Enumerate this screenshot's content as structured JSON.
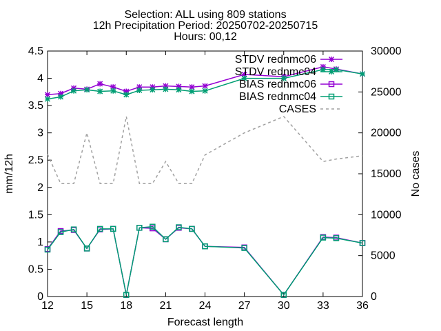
{
  "chart_data": {
    "type": "line",
    "title_lines": [
      "Selection: ALL using   809 stations",
      "12h Precipitation   Period: 20250702-20250715",
      "Hours: 00,12"
    ],
    "xlabel": "Forecast length",
    "ylabel": "mm/12h",
    "y2label": "No cases",
    "x": [
      12,
      13,
      14,
      15,
      16,
      17,
      18,
      19,
      20,
      21,
      22,
      23,
      24,
      27,
      30,
      33,
      34,
      36
    ],
    "xlim": [
      12,
      36
    ],
    "xticks": [
      12,
      15,
      18,
      21,
      24,
      27,
      30,
      33,
      36
    ],
    "ylim": [
      0,
      4.5
    ],
    "yticks": [
      0,
      0.5,
      1,
      1.5,
      2,
      2.5,
      3,
      3.5,
      4,
      4.5
    ],
    "y2lim": [
      0,
      30000
    ],
    "y2ticks": [
      0,
      5000,
      10000,
      15000,
      20000,
      25000,
      30000
    ],
    "legend_position": "top-right",
    "series": [
      {
        "name": "STDV rednmc06",
        "axis": "y1",
        "color": "#9400d3",
        "marker": "star",
        "dash": false,
        "values": [
          3.7,
          3.72,
          3.82,
          3.8,
          3.9,
          3.84,
          3.76,
          3.84,
          3.84,
          3.86,
          3.85,
          3.84,
          3.86,
          4.07,
          4.03,
          4.21,
          4.17,
          4.08
        ]
      },
      {
        "name": "STDV rednmc04",
        "axis": "y1",
        "color": "#009e73",
        "marker": "star",
        "dash": false,
        "values": [
          3.62,
          3.66,
          3.77,
          3.79,
          3.76,
          3.77,
          3.7,
          3.78,
          3.79,
          3.8,
          3.79,
          3.76,
          3.77,
          4.0,
          4.0,
          4.16,
          4.16,
          4.08
        ]
      },
      {
        "name": "BIAS rednmc06",
        "axis": "y1",
        "color": "#9400d3",
        "marker": "square",
        "dash": false,
        "values": [
          0.87,
          1.2,
          1.22,
          0.88,
          1.23,
          1.24,
          0.03,
          1.26,
          1.25,
          1.05,
          1.26,
          1.24,
          0.92,
          0.9,
          0.03,
          1.09,
          1.08,
          0.98
        ]
      },
      {
        "name": "BIAS rednmc04",
        "axis": "y1",
        "color": "#009e73",
        "marker": "square",
        "dash": false,
        "values": [
          0.86,
          1.18,
          1.23,
          0.88,
          1.24,
          1.24,
          0.03,
          1.26,
          1.28,
          1.05,
          1.27,
          1.24,
          0.92,
          0.89,
          0.03,
          1.08,
          1.07,
          0.98
        ]
      },
      {
        "name": "CASES",
        "axis": "y2",
        "color": "#a0a0a0",
        "marker": "none",
        "dash": true,
        "values": [
          17400,
          13800,
          13800,
          20000,
          13800,
          13800,
          22000,
          13800,
          13800,
          16500,
          13800,
          13800,
          17300,
          20000,
          22000,
          16500,
          16800,
          17200
        ]
      }
    ]
  }
}
